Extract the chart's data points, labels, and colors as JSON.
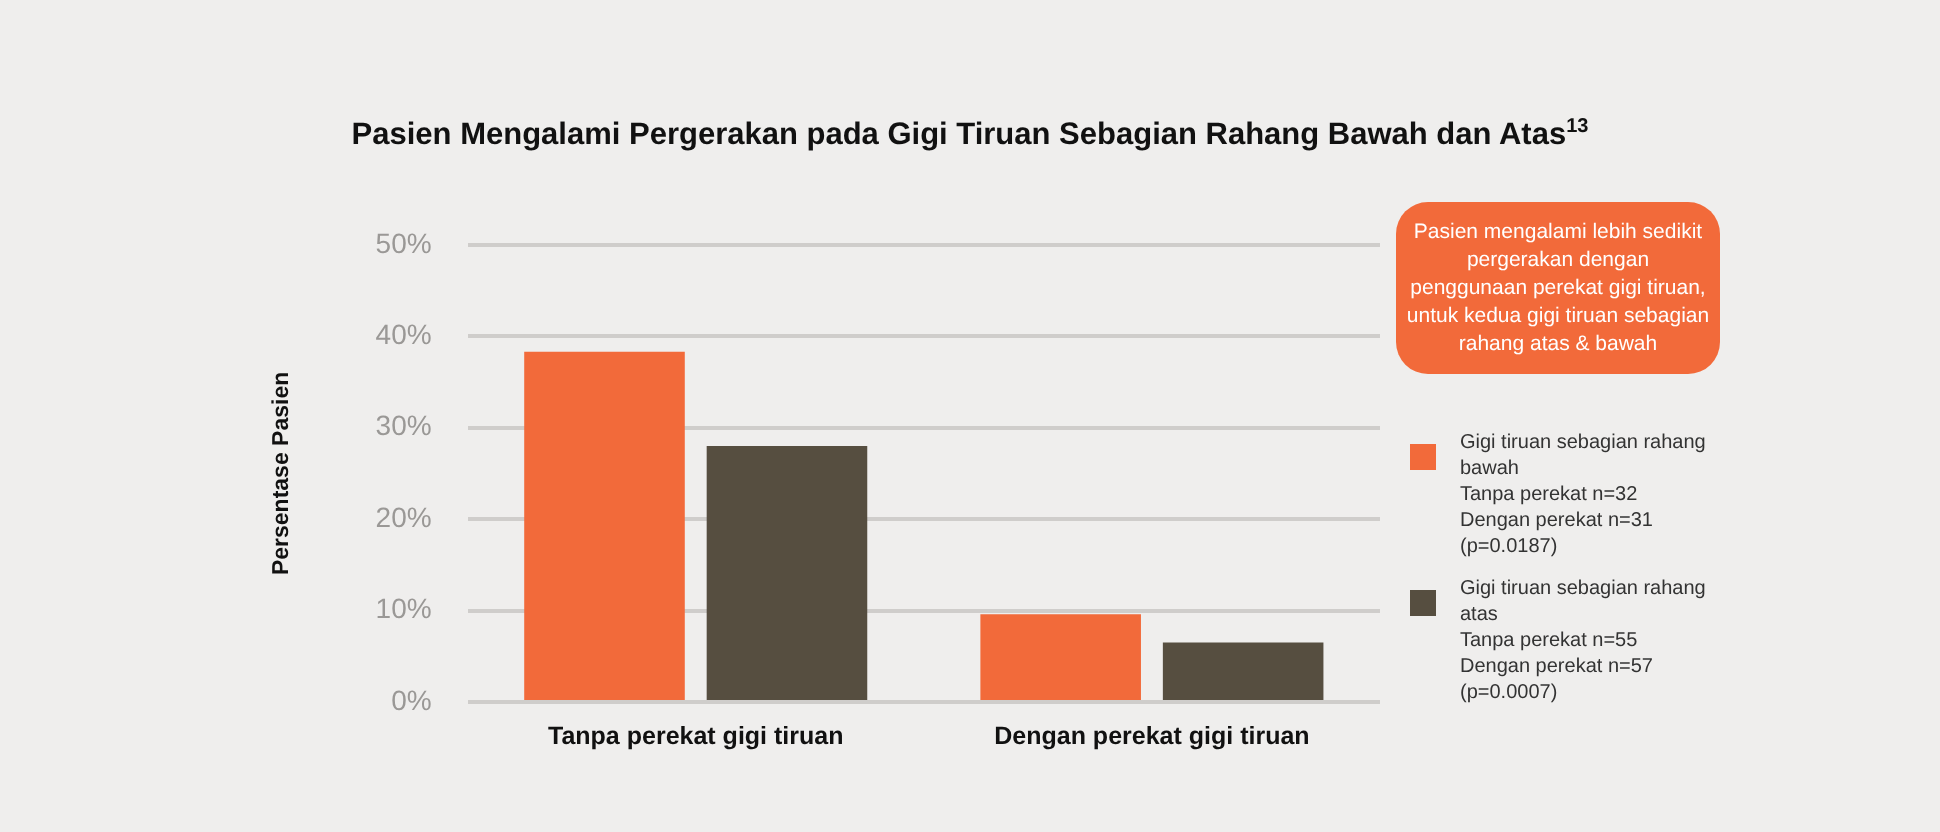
{
  "chart_data": {
    "type": "bar",
    "title": "Pasien Mengalami Pergerakan pada Gigi Tiruan Sebagian Rahang Bawah dan Atas$^{13}$",
    "ylabel": "Persentase Pasien",
    "categories": [
      "Tanpa perekat gigi tiruan",
      "Dengan perekat gigi tiruan"
    ],
    "series": [
      {
        "name": "Gigi tiruan sebagian rahang bawah",
        "color": "#f26a3a",
        "values": [
          38.3,
          9.6
        ]
      },
      {
        "name": "Gigi tiruan sebagian rahang atas",
        "color": "#564e40",
        "values": [
          28.0,
          6.5
        ]
      }
    ],
    "ylim": [
      0,
      50
    ],
    "yticks": [
      {
        "value": 0,
        "label": "0%"
      },
      {
        "value": 10,
        "label": "10%"
      },
      {
        "value": 20,
        "label": "20%"
      },
      {
        "value": 30,
        "label": "30%"
      },
      {
        "value": 40,
        "label": "40%"
      },
      {
        "value": 50,
        "label": "50%"
      }
    ],
    "grid": "y",
    "legend": "right",
    "annotations": [
      "Pasien mengalami lebih sedikit pergerakan dengan penggunaan perekat gigi tiruan, untuk kedua gigi tiruan sebagian rahang atas & bawah",
      "Tanpa perekat n=32\nDengan perekat n=31\n(p=0.0187)",
      "Tanpa perekat n=55\nDengan perekat n=57\n(p=0.0007)"
    ]
  }
}
